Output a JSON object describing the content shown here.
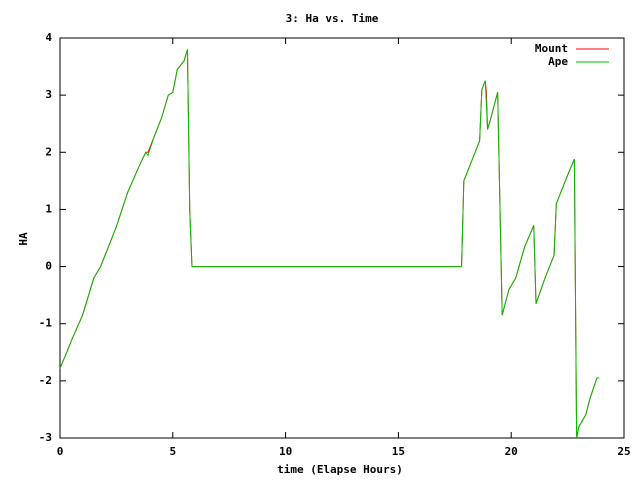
{
  "chart_data": {
    "type": "line",
    "title": "3: Ha vs. Time",
    "xlabel": "time (Elapse Hours)",
    "ylabel": "HA",
    "x": [
      0,
      0.3,
      0.5,
      1,
      1.5,
      1.8,
      2.5,
      3,
      3.5,
      3.8,
      3.9,
      4.2,
      4.5,
      4.8,
      5,
      5.2,
      5.5,
      5.65,
      5.75,
      5.85,
      17.8,
      17.9,
      18.3,
      18.6,
      18.7,
      18.85,
      18.9,
      18.95,
      19.1,
      19.4,
      19.6,
      19.9,
      20.2,
      20.6,
      21,
      21.1,
      21.5,
      21.9,
      22,
      22.5,
      22.8,
      22.9,
      23,
      23.3,
      23.5,
      23.8,
      23.9
    ],
    "series": [
      {
        "name": "Mount",
        "color": "#ff0000",
        "values": [
          -1.78,
          -1.5,
          -1.3,
          -0.85,
          -0.2,
          0,
          0.7,
          1.3,
          1.75,
          2.0,
          2.0,
          2.3,
          2.6,
          3.0,
          3.05,
          3.45,
          3.6,
          3.8,
          1.0,
          0,
          0,
          1.5,
          1.9,
          2.2,
          3.1,
          3.25,
          3.05,
          2.4,
          2.6,
          3.05,
          -0.85,
          -0.4,
          -0.2,
          0.35,
          0.72,
          -0.65,
          -0.2,
          0.2,
          1.1,
          1.6,
          1.88,
          -3.0,
          -2.8,
          -2.6,
          -2.3,
          -1.95,
          -1.95
        ]
      },
      {
        "name": "Ape",
        "color": "#00c000",
        "values": [
          -1.78,
          -1.5,
          -1.3,
          -0.85,
          -0.2,
          0,
          0.7,
          1.3,
          1.75,
          2.0,
          1.95,
          2.3,
          2.6,
          3.0,
          3.05,
          3.45,
          3.6,
          3.8,
          1.0,
          0,
          0,
          1.5,
          1.9,
          2.2,
          3.1,
          3.25,
          2.85,
          2.4,
          2.6,
          3.05,
          -0.85,
          -0.4,
          -0.2,
          0.35,
          0.72,
          -0.65,
          -0.2,
          0.2,
          1.1,
          1.6,
          1.88,
          -3.0,
          -2.8,
          -2.6,
          -2.3,
          -1.95,
          -1.95
        ]
      }
    ],
    "xlim": [
      0,
      25
    ],
    "xticks": [
      0,
      5,
      10,
      15,
      20,
      25
    ],
    "ylim": [
      -3,
      4
    ],
    "yticks": [
      -3,
      -2,
      -1,
      0,
      1,
      2,
      3,
      4
    ],
    "legend": "top-right"
  }
}
